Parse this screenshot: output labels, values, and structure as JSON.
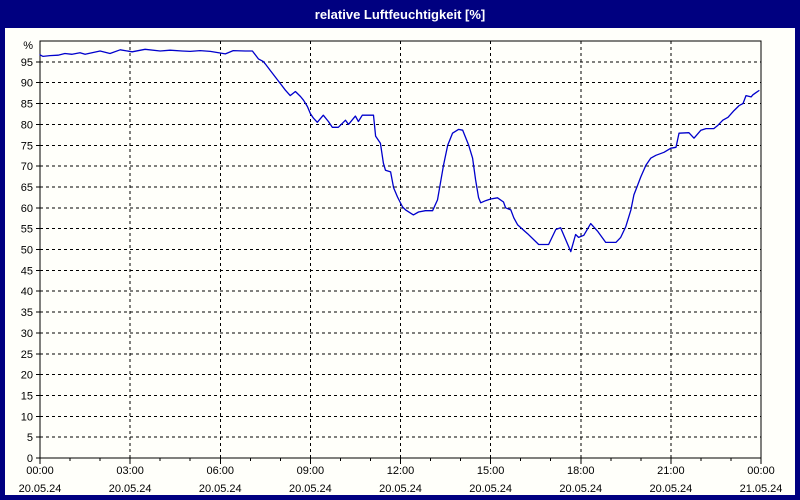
{
  "window": {
    "title": "relative Luftfeuchtigkeit [%]"
  },
  "colors": {
    "title_bar_bg": "#000080",
    "title_text": "#ffffff",
    "plot_bg": "#fffffa",
    "grid": "#000000",
    "axis_text": "#000000",
    "line": "#0000cc"
  },
  "chart_data": {
    "type": "line",
    "title": "relative Luftfeuchtigkeit [%]",
    "ylabel": "%",
    "ylim": [
      0,
      100
    ],
    "xlim_hours": [
      0,
      24
    ],
    "grid": "dashed",
    "legend_position": "none",
    "y_ticks": [
      0,
      5,
      10,
      15,
      20,
      25,
      30,
      35,
      40,
      45,
      50,
      55,
      60,
      65,
      70,
      75,
      80,
      85,
      90,
      95
    ],
    "x_ticks": [
      {
        "hour": 0,
        "time": "00:00",
        "date": "20.05.24"
      },
      {
        "hour": 3,
        "time": "03:00",
        "date": "20.05.24"
      },
      {
        "hour": 6,
        "time": "06:00",
        "date": "20.05.24"
      },
      {
        "hour": 9,
        "time": "09:00",
        "date": "20.05.24"
      },
      {
        "hour": 12,
        "time": "12:00",
        "date": "20.05.24"
      },
      {
        "hour": 15,
        "time": "15:00",
        "date": "20.05.24"
      },
      {
        "hour": 18,
        "time": "18:00",
        "date": "20.05.24"
      },
      {
        "hour": 21,
        "time": "21:00",
        "date": "20.05.24"
      },
      {
        "hour": 24,
        "time": "00:00",
        "date": "21.05.24"
      }
    ],
    "minor_tick_every_hours": 1,
    "series": [
      {
        "name": "relative Luftfeuchtigkeit",
        "color": "#0000cc",
        "points": [
          [
            0,
            96.7
          ],
          [
            0.1,
            96.3
          ],
          [
            0.33,
            96.5
          ],
          [
            0.6,
            96.6
          ],
          [
            0.83,
            97.0
          ],
          [
            1.07,
            96.8
          ],
          [
            1.33,
            97.2
          ],
          [
            1.5,
            96.8
          ],
          [
            2,
            97.6
          ],
          [
            2.33,
            97.0
          ],
          [
            2.67,
            97.9
          ],
          [
            3.07,
            97.4
          ],
          [
            3.5,
            98.0
          ],
          [
            4,
            97.6
          ],
          [
            4.33,
            97.8
          ],
          [
            4.73,
            97.6
          ],
          [
            5,
            97.5
          ],
          [
            5.33,
            97.7
          ],
          [
            5.67,
            97.5
          ],
          [
            6.17,
            96.9
          ],
          [
            6.43,
            97.7
          ],
          [
            6.83,
            97.6
          ],
          [
            7.07,
            97.6
          ],
          [
            7.27,
            95.7
          ],
          [
            7.43,
            95.1
          ],
          [
            7.5,
            94.5
          ],
          [
            7.67,
            92.9
          ],
          [
            7.83,
            91.4
          ],
          [
            8,
            89.8
          ],
          [
            8.17,
            88.2
          ],
          [
            8.33,
            86.9
          ],
          [
            8.5,
            87.9
          ],
          [
            8.67,
            86.7
          ],
          [
            8.77,
            85.8
          ],
          [
            8.9,
            84.3
          ],
          [
            9,
            82.6
          ],
          [
            9.1,
            81.5
          ],
          [
            9.23,
            80.5
          ],
          [
            9.43,
            82.2
          ],
          [
            9.6,
            80.7
          ],
          [
            9.73,
            79.3
          ],
          [
            9.93,
            79.3
          ],
          [
            10.17,
            81.0
          ],
          [
            10.27,
            80.0
          ],
          [
            10.5,
            82.0
          ],
          [
            10.6,
            80.7
          ],
          [
            10.73,
            82.2
          ],
          [
            11.1,
            82.2
          ],
          [
            11.17,
            77.2
          ],
          [
            11.33,
            75.5
          ],
          [
            11.43,
            70.7
          ],
          [
            11.5,
            69.0
          ],
          [
            11.67,
            68.6
          ],
          [
            11.77,
            64.8
          ],
          [
            11.9,
            62.6
          ],
          [
            12.07,
            60.2
          ],
          [
            12.17,
            59.5
          ],
          [
            12.43,
            58.3
          ],
          [
            12.6,
            59.0
          ],
          [
            12.83,
            59.3
          ],
          [
            13.07,
            59.3
          ],
          [
            13.23,
            61.9
          ],
          [
            13.43,
            70.2
          ],
          [
            13.57,
            75.0
          ],
          [
            13.73,
            77.9
          ],
          [
            13.93,
            78.8
          ],
          [
            14.07,
            78.6
          ],
          [
            14.27,
            75.0
          ],
          [
            14.4,
            71.9
          ],
          [
            14.5,
            66.7
          ],
          [
            14.6,
            62.4
          ],
          [
            14.67,
            61.2
          ],
          [
            14.83,
            61.7
          ],
          [
            15,
            62.1
          ],
          [
            15.23,
            62.4
          ],
          [
            15.43,
            61.4
          ],
          [
            15.5,
            60.0
          ],
          [
            15.67,
            59.5
          ],
          [
            15.77,
            57.6
          ],
          [
            15.9,
            55.9
          ],
          [
            16.07,
            54.8
          ],
          [
            16.23,
            53.8
          ],
          [
            16.6,
            51.2
          ],
          [
            16.93,
            51.2
          ],
          [
            17.17,
            54.8
          ],
          [
            17.33,
            55.2
          ],
          [
            17.67,
            49.5
          ],
          [
            17.83,
            53.6
          ],
          [
            17.93,
            52.9
          ],
          [
            18.1,
            53.4
          ],
          [
            18.33,
            56.2
          ],
          [
            18.57,
            54.3
          ],
          [
            18.83,
            51.7
          ],
          [
            19.17,
            51.7
          ],
          [
            19.33,
            52.9
          ],
          [
            19.5,
            55.5
          ],
          [
            19.67,
            59.5
          ],
          [
            19.77,
            63.1
          ],
          [
            20,
            67.4
          ],
          [
            20.17,
            70.2
          ],
          [
            20.33,
            71.9
          ],
          [
            20.5,
            72.6
          ],
          [
            20.77,
            73.3
          ],
          [
            21,
            74.3
          ],
          [
            21.17,
            74.5
          ],
          [
            21.27,
            77.9
          ],
          [
            21.6,
            78.0
          ],
          [
            21.77,
            76.7
          ],
          [
            22,
            78.6
          ],
          [
            22.17,
            79.0
          ],
          [
            22.43,
            79.0
          ],
          [
            22.57,
            79.8
          ],
          [
            22.73,
            81.0
          ],
          [
            22.9,
            81.7
          ],
          [
            23.1,
            83.3
          ],
          [
            23.27,
            84.5
          ],
          [
            23.4,
            85.0
          ],
          [
            23.5,
            86.9
          ],
          [
            23.67,
            86.6
          ],
          [
            23.73,
            87.1
          ],
          [
            23.83,
            87.6
          ],
          [
            23.93,
            88.1
          ]
        ]
      }
    ]
  }
}
